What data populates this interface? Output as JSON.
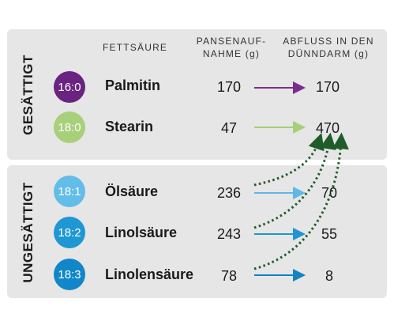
{
  "headers": {
    "fatty_acid": "FETTSÄURE",
    "rumen_uptake_line1": "PANSENAUF-",
    "rumen_uptake_line2": "NAHME (g)",
    "outflow_line1": "ABFLUSS IN DEN",
    "outflow_line2": "DÜNNDARM (g)"
  },
  "groups": {
    "saturated": "GESÄTTIGT",
    "unsaturated": "UNGESÄTTIGT"
  },
  "rows": [
    {
      "code": "16:0",
      "name": "Palmitin",
      "uptake": "170",
      "outflow": "170",
      "color": "#6a2380",
      "arrow_color": "#7b2d8e"
    },
    {
      "code": "18:0",
      "name": "Stearin",
      "uptake": "47",
      "outflow": "470",
      "color": "#a8cf7a",
      "arrow_color": "#a5cf78"
    },
    {
      "code": "18:1",
      "name": "Ölsäure",
      "uptake": "236",
      "outflow": "70",
      "color": "#62bde8",
      "arrow_color": "#5fb8e6"
    },
    {
      "code": "18:2",
      "name": "Linolsäure",
      "uptake": "243",
      "outflow": "55",
      "color": "#1e97d3",
      "arrow_color": "#2095d0"
    },
    {
      "code": "18:3",
      "name": "Linolensäure",
      "uptake": "78",
      "outflow": "8",
      "color": "#1186c8",
      "arrow_color": "#1381c2"
    }
  ],
  "colors": {
    "panel": "#e6e6e6",
    "dotted_arrow": "#1f5c2a"
  }
}
